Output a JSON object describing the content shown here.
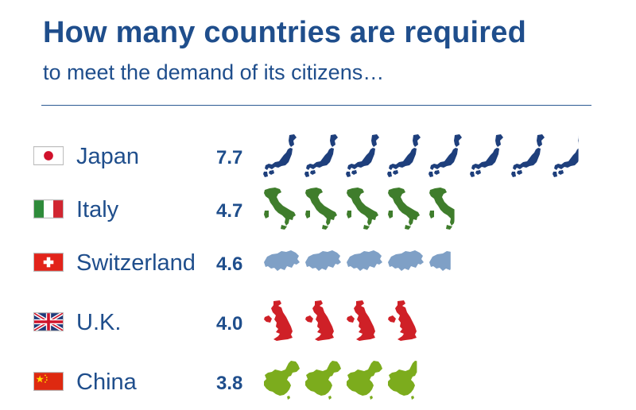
{
  "header": {
    "title": "How many countries are required",
    "subtitle": "to meet the demand of its citizens…"
  },
  "colors": {
    "title": "#1f4e8c",
    "label": "#1f4e8c"
  },
  "chart_data": {
    "type": "bar",
    "categories": [
      "Japan",
      "Italy",
      "Switzerland",
      "U.K.",
      "China"
    ],
    "values": [
      7.7,
      4.7,
      4.6,
      4.0,
      3.8
    ],
    "value_labels": [
      "7.7",
      "4.7",
      "4.6",
      "4.0",
      "3.8"
    ],
    "title": "How many countries are required",
    "subtitle": "to meet the demand of its citizens…",
    "xlabel": "",
    "ylabel": "",
    "grid": false,
    "icon_style": "pictogram of each country's map shape, one icon per unit",
    "series": [
      {
        "category": "Japan",
        "icon": "japan-map-icon",
        "flag": "japan-flag-icon",
        "color": "#1e3f7c"
      },
      {
        "category": "Italy",
        "icon": "italy-map-icon",
        "flag": "italy-flag-icon",
        "color": "#3f7d2c"
      },
      {
        "category": "Switzerland",
        "icon": "switzerland-map-icon",
        "flag": "switzerland-flag-icon",
        "color": "#7fa0c6"
      },
      {
        "category": "U.K.",
        "icon": "uk-map-icon",
        "flag": "uk-flag-icon",
        "color": "#cf2027"
      },
      {
        "category": "China",
        "icon": "china-map-icon",
        "flag": "china-flag-icon",
        "color": "#7cac1d"
      }
    ]
  }
}
